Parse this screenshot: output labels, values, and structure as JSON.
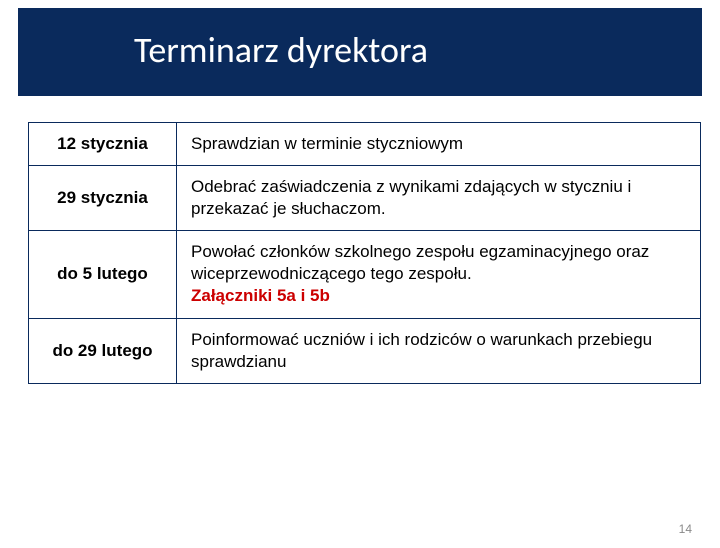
{
  "title": "Terminarz dyrektora",
  "title_bg": "#0a2a5c",
  "title_color": "#ffffff",
  "border_color": "#0a2a5c",
  "highlight_color": "#cc0000",
  "page_number": "14",
  "rows": [
    {
      "date": "12 stycznia",
      "desc": "Sprawdzian w terminie styczniowym"
    },
    {
      "date": "29 stycznia",
      "desc": "Odebrać zaświadczenia z wynikami zdających w styczniu i przekazać je słuchaczom."
    },
    {
      "date": "do 5 lutego",
      "desc_pre": "Powołać członków szkolnego zespołu egzaminacyjnego oraz wiceprzewodniczącego tego zespołu.",
      "desc_hilite": "Załączniki 5a i 5b"
    },
    {
      "date": "do 29 lutego",
      "desc": "Poinformować uczniów i ich rodziców o warunkach przebiegu sprawdzianu"
    }
  ]
}
